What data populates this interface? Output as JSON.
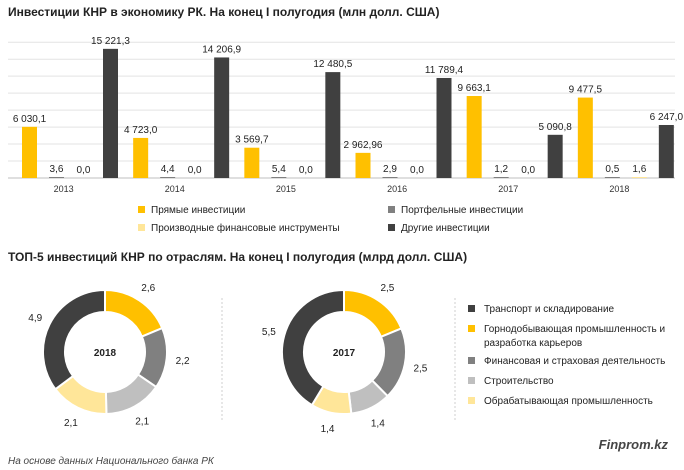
{
  "chart_data": [
    {
      "type": "bar",
      "title": "Инвестиции КНР в экономику РК. На конец I полугодия (млн долл. США)",
      "categories": [
        "2013",
        "2014",
        "2015",
        "2016",
        "2017",
        "2018"
      ],
      "series": [
        {
          "name": "Прямые инвестиции",
          "color": "#FFC000",
          "values": [
            6030.1,
            4723.0,
            3569.7,
            2962.96,
            9663.1,
            9477.5
          ],
          "labels": [
            "6 030,1",
            "4 723,0",
            "3 569,7",
            "2 962,96",
            "9 663,1",
            "9 477,5"
          ]
        },
        {
          "name": "Портфельные инвестиции",
          "color": "#808080",
          "values": [
            3.6,
            4.4,
            5.4,
            2.9,
            1.2,
            0.5
          ],
          "labels": [
            "3,6",
            "4,4",
            "5,4",
            "2,9",
            "1,2",
            "0,5"
          ]
        },
        {
          "name": "Производные финансовые инструменты",
          "color": "#FFE699",
          "values": [
            0.0,
            0.0,
            0.0,
            0.0,
            0.0,
            1.6
          ],
          "labels": [
            "0,0",
            "0,0",
            "0,0",
            "0,0",
            "0,0",
            "1,6"
          ]
        },
        {
          "name": "Другие инвестиции",
          "color": "#404040",
          "values": [
            15221.3,
            14206.9,
            12480.5,
            11789.4,
            5090.8,
            6247.0
          ],
          "labels": [
            "15 221,3",
            "14 206,9",
            "12 480,5",
            "11 789,4",
            "5 090,8",
            "6 247,0"
          ]
        }
      ],
      "ylim": [
        0,
        16500
      ],
      "grid": true,
      "legend": "bottom"
    },
    {
      "type": "pie",
      "title": "ТОП-5 инвестиций КНР по отраслям. На конец I полугодия (млрд долл. США)",
      "charts": [
        {
          "center_label": "2018",
          "values": [
            2.6,
            2.2,
            2.1,
            2.1,
            4.9
          ],
          "labels": [
            "2,6",
            "2,2",
            "2,1",
            "2,1",
            "4,9"
          ],
          "order": [
            "Горнодобывающая промышленность и разработка карьеров",
            "Финансовая и страховая деятельность",
            "Строительство",
            "Обрабатывающая промышленность",
            "Транспорт и складирование"
          ]
        },
        {
          "center_label": "2017",
          "values": [
            2.5,
            2.5,
            1.4,
            1.4,
            5.5
          ],
          "labels": [
            "2,5",
            "2,5",
            "1,4",
            "1,4",
            "5,5"
          ],
          "order": [
            "Горнодобывающая промышленность и разработка карьеров",
            "Финансовая и страховая деятельность",
            "Строительство",
            "Обрабатывающая промышленность",
            "Транспорт и складирование"
          ]
        }
      ],
      "legend": "right",
      "legend_entries": [
        {
          "name": "Транспорт и складирование",
          "color": "#404040"
        },
        {
          "name": "Горнодобывающая промышленность и разработка карьеров",
          "color": "#FFC000"
        },
        {
          "name": "Финансовая и страховая деятельность",
          "color": "#808080"
        },
        {
          "name": "Строительство",
          "color": "#BFBFBF"
        },
        {
          "name": "Обрабатывающая промышленность",
          "color": "#FFE699"
        }
      ]
    }
  ],
  "footer": {
    "brand": "Finprom.kz",
    "source": "На основе данных Национального банка РК"
  }
}
